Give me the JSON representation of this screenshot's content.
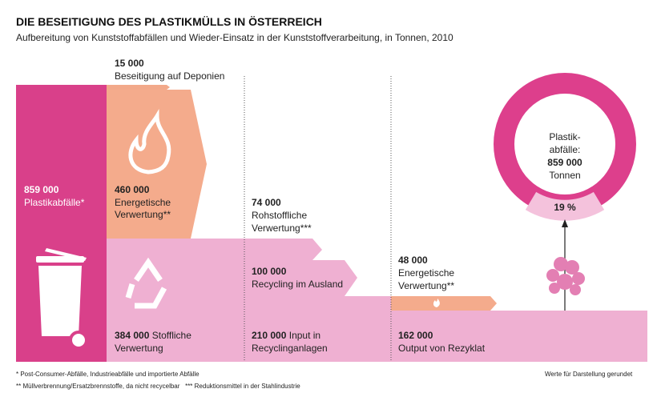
{
  "header": {
    "title": "DIE BESEITIGUNG DES PLASTIKMÜLLS IN ÖSTERREICH",
    "subtitle": "Aufbereitung von Kunststoffabfällen und Wieder-Einsatz in der Kunststoffverarbeitung, in Tonnen, 2010"
  },
  "nodes": [
    {
      "value": "859 000",
      "label": "Plastikabfälle*"
    },
    {
      "value": "15 000",
      "label": "Beseitigung auf Deponien"
    },
    {
      "value": "460 000",
      "label": [
        "Energetische",
        "Verwertung**"
      ]
    },
    {
      "value": "384 000",
      "label": [
        "Stoffliche",
        "Verwertung"
      ]
    },
    {
      "value": "74 000",
      "label": [
        "Rohstoffliche",
        "Verwertung***"
      ]
    },
    {
      "value": "100 000",
      "label": "Recycling im Ausland"
    },
    {
      "value": "210 000",
      "label": [
        "Input in",
        "Recyclinganlagen"
      ]
    },
    {
      "value": "48 000",
      "label": [
        "Energetische",
        "Verwertung**"
      ]
    },
    {
      "value": "162 000",
      "label": "Output von Rezyklat"
    }
  ],
  "ring": {
    "label": [
      "Plastik-",
      "abfälle:"
    ],
    "value": "859 000",
    "unit": "Tonnen",
    "share": "19 %"
  },
  "footnotes": [
    "* Post-Consumer-Abfälle, Industrieabfälle und importierte Abfälle",
    "** Müllverbrennung/Ersatzbrennstoffe, da nicht recycelbar   *** Reduktionsmittel in der Stahlindustrie"
  ],
  "note": "Werte für Darstellung gerundet"
}
